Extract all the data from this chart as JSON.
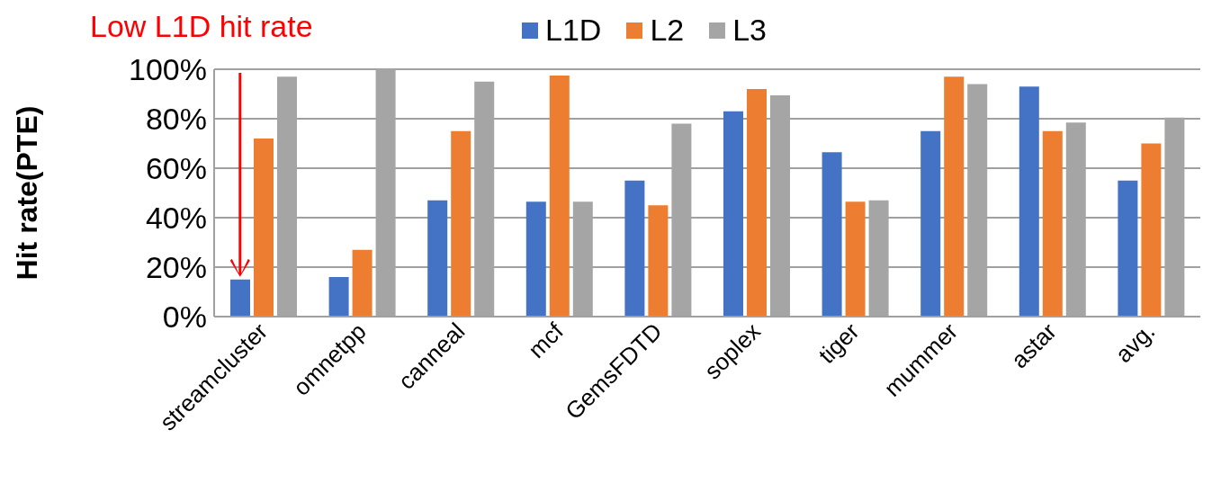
{
  "chart_data": {
    "type": "bar",
    "ylabel": "Hit rate(PTE)",
    "categories": [
      "streamcluster",
      "omnetpp",
      "canneal",
      "mcf",
      "GemsFDTD",
      "soplex",
      "tiger",
      "mummer",
      "astar",
      "avg."
    ],
    "series": [
      {
        "name": "L1D",
        "color": "#4472c4",
        "values": [
          15,
          16,
          47,
          46.5,
          55,
          83,
          66.5,
          75,
          93,
          55
        ]
      },
      {
        "name": "L2",
        "color": "#ed7d31",
        "values": [
          72,
          27,
          75,
          97.5,
          45,
          92,
          46.5,
          97,
          75,
          70
        ]
      },
      {
        "name": "L3",
        "color": "#a5a5a5",
        "values": [
          97,
          100,
          95,
          46.5,
          78,
          89.5,
          47,
          94,
          78.5,
          80.5
        ]
      }
    ],
    "ylim": [
      0,
      100
    ],
    "yticks": [
      {
        "value": 0,
        "label": "0%"
      },
      {
        "value": 20,
        "label": "20%"
      },
      {
        "value": 40,
        "label": "40%"
      },
      {
        "value": 60,
        "label": "60%"
      },
      {
        "value": 80,
        "label": "80%"
      },
      {
        "value": 100,
        "label": "100%"
      }
    ],
    "grid": "y",
    "legend": "top",
    "annotations": [
      "Low L1D hit rate"
    ]
  }
}
